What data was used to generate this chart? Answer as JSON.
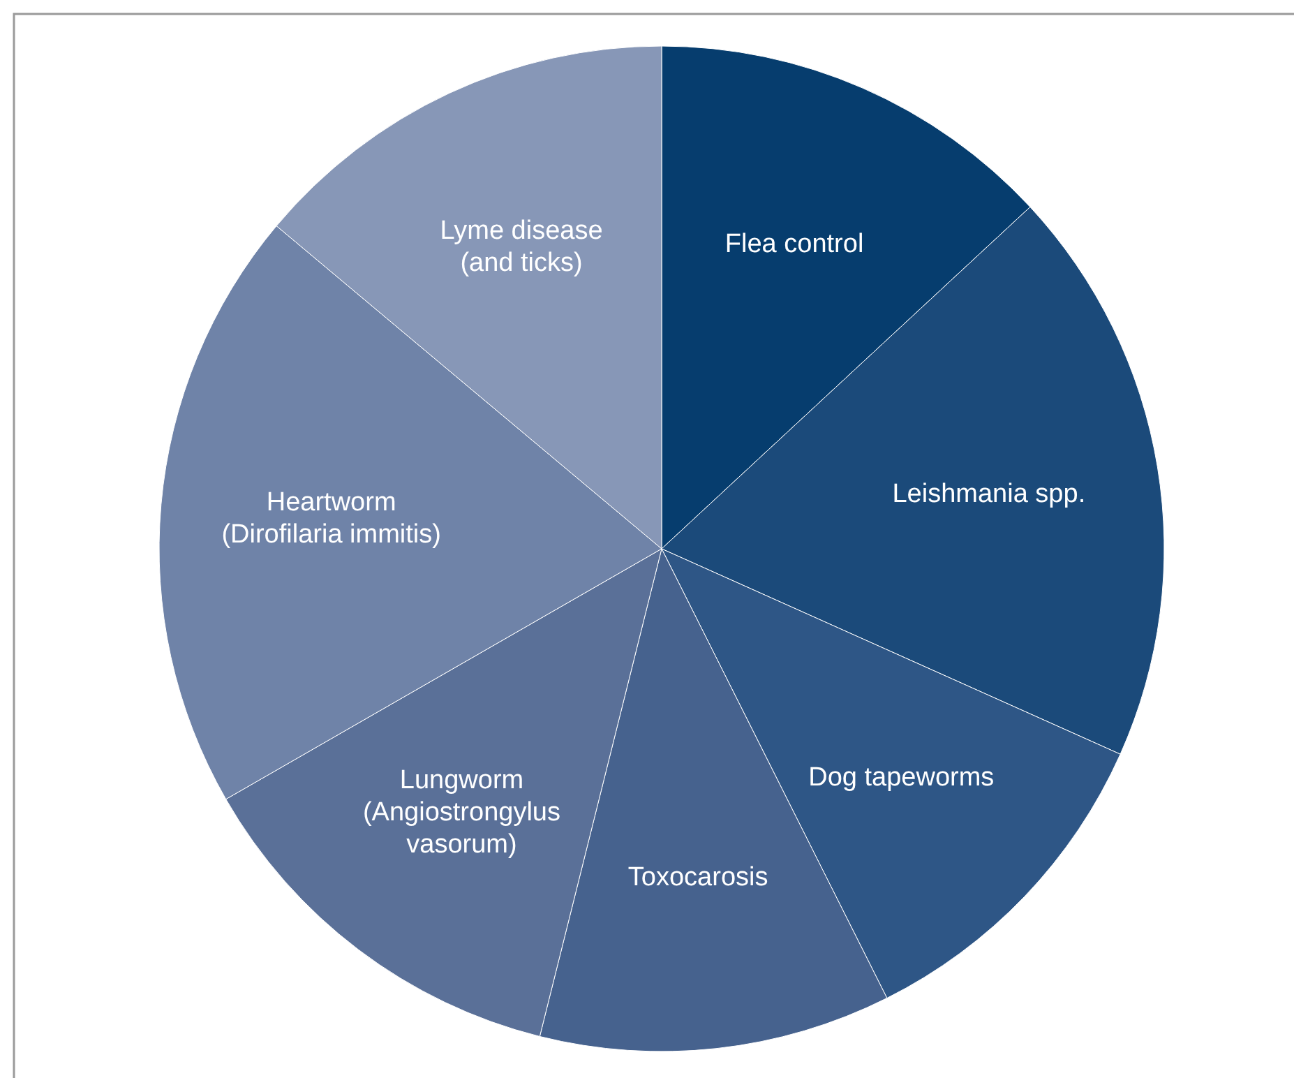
{
  "chart_data": {
    "type": "pie",
    "categories": [
      "Flea control",
      "Leishmania spp.",
      "Dog tapeworms",
      "Toxocarosis",
      "Lungworm\n(Angiostrongylus\nvasorum)",
      "Heartworm\n(Dirofilaria immitis)",
      "Lyme disease\n(and ticks)"
    ],
    "values": [
      13.1,
      18.6,
      10.9,
      11.3,
      12.8,
      19.4,
      13.9
    ],
    "colors": [
      "#063d6e",
      "#1b4a7a",
      "#2e5686",
      "#46628e",
      "#5a7098",
      "#6f83a8",
      "#8797b7"
    ]
  }
}
